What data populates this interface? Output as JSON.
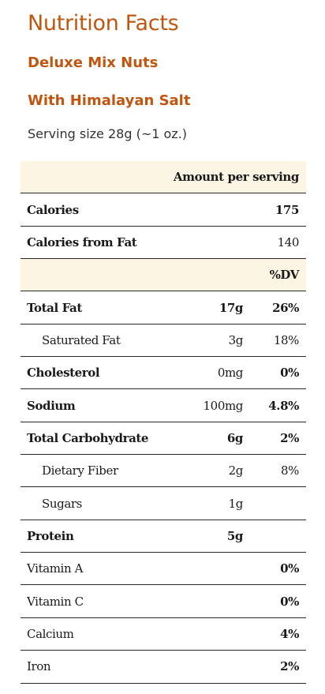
{
  "label": {
    "title": "Nutrition Facts",
    "subtitle_1": "Deluxe Mix Nuts",
    "subtitle_2": "With Himalayan Salt",
    "serving_size": "Serving size 28g (~1 oz.)"
  },
  "header": {
    "amount_per_serving": "Amount per serving",
    "dv_header": "%DV"
  },
  "calories": {
    "label": "Calories",
    "value": "175"
  },
  "calories_from_fat": {
    "label": "Calories from Fat",
    "value": "140"
  },
  "nutrients": [
    {
      "name": "Total Fat",
      "amount": "17g",
      "dv": "26%"
    },
    {
      "name": "Saturated Fat",
      "amount": "3g",
      "dv": "18%"
    },
    {
      "name": "Cholesterol",
      "amount": "0mg",
      "dv": "0%"
    },
    {
      "name": "Sodium",
      "amount": "100mg",
      "dv": "4.8%"
    },
    {
      "name": "Total Carbohydrate",
      "amount": "6g",
      "dv": "2%"
    },
    {
      "name": "Dietary Fiber",
      "amount": "2g",
      "dv": "8%"
    },
    {
      "name": "Sugars",
      "amount": "1g",
      "dv": ""
    },
    {
      "name": "Protein",
      "amount": "5g",
      "dv": ""
    }
  ],
  "vitamins": [
    {
      "name": "Vitamin A",
      "dv": "0%"
    },
    {
      "name": "Vitamin C",
      "dv": "0%"
    },
    {
      "name": "Calcium",
      "dv": "4%"
    },
    {
      "name": "Iron",
      "dv": "2%"
    }
  ]
}
